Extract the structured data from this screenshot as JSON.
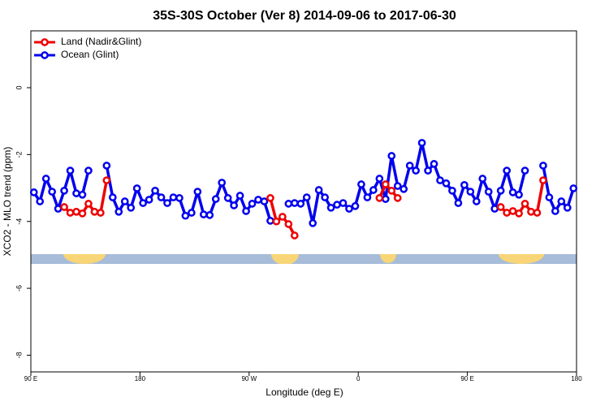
{
  "chart_data": {
    "type": "line",
    "title": "35S-30S October (Ver 8)   2014-09-06 to 2017-06-30",
    "x_label": "Longitude (deg E)",
    "y_label": "XCO2 - MLO trend (ppm)",
    "x": [
      92.5,
      97.5,
      102.5,
      107.5,
      112.5,
      117.5,
      122.5,
      127.5,
      132.5,
      137.5,
      142.5,
      147.5,
      152.5,
      157.5,
      162.5,
      167.5,
      172.5,
      177.5,
      182.5,
      187.5,
      192.5,
      197.5,
      202.5,
      207.5,
      212.5,
      217.5,
      222.5,
      227.5,
      232.5,
      237.5,
      242.5,
      247.5,
      252.5,
      257.5,
      262.5,
      267.5,
      272.5,
      277.5,
      282.5,
      287.5,
      292.5,
      297.5,
      302.5,
      307.5,
      312.5,
      317.5,
      322.5,
      327.5,
      332.5,
      337.5,
      342.5,
      347.5,
      352.5,
      357.5,
      362.5,
      367.5,
      372.5,
      377.5,
      382.5,
      387.5,
      392.5,
      397.5,
      402.5,
      407.5,
      412.5,
      417.5,
      422.5,
      427.5,
      432.5,
      437.5,
      442.5,
      447.5,
      452.5,
      457.5,
      462.5,
      467.5,
      472.5,
      477.5,
      482.5,
      487.5,
      492.5,
      497.5,
      502.5,
      507.5,
      512.5,
      517.5,
      522.5,
      527.5,
      532.5,
      537.5
    ],
    "series": [
      {
        "name": "Land (Nadir&Glint)",
        "color": "#ee0000",
        "values": [
          null,
          null,
          null,
          null,
          null,
          -3.57,
          -3.74,
          -3.71,
          -3.76,
          -3.47,
          -3.71,
          -3.74,
          -2.77,
          null,
          null,
          null,
          null,
          null,
          null,
          null,
          null,
          null,
          null,
          null,
          null,
          null,
          null,
          null,
          null,
          null,
          null,
          null,
          null,
          null,
          null,
          null,
          null,
          null,
          null,
          -3.3,
          -4.0,
          -3.86,
          -4.08,
          -4.42,
          null,
          null,
          null,
          null,
          null,
          null,
          null,
          null,
          null,
          null,
          null,
          null,
          null,
          -3.3,
          -2.89,
          -3.08,
          -3.3,
          null,
          null,
          null,
          null,
          null,
          null,
          null,
          null,
          null,
          null,
          null,
          null,
          null,
          null,
          null,
          null,
          -3.57,
          -3.74,
          -3.69,
          -3.76,
          -3.47,
          -3.71,
          -3.74,
          -2.77,
          null,
          null,
          null,
          null,
          null
        ]
      },
      {
        "name": "Ocean (Glint)",
        "color": "#0000ee",
        "values": [
          -3.13,
          -3.4,
          -2.72,
          -3.11,
          -3.62,
          -3.08,
          -2.48,
          -3.16,
          -3.2,
          -2.48,
          null,
          null,
          -2.33,
          -3.28,
          -3.71,
          -3.4,
          -3.59,
          -3.01,
          -3.45,
          -3.35,
          -3.08,
          -3.28,
          -3.45,
          -3.28,
          -3.3,
          -3.83,
          -3.74,
          -3.11,
          -3.79,
          -3.81,
          -3.33,
          -2.84,
          -3.3,
          -3.52,
          -3.23,
          -3.69,
          -3.47,
          -3.35,
          -3.4,
          -3.98,
          null,
          null,
          -3.47,
          -3.45,
          -3.47,
          -3.28,
          -4.05,
          -3.06,
          -3.28,
          -3.59,
          -3.5,
          -3.45,
          -3.62,
          -3.54,
          -2.89,
          -3.28,
          -3.06,
          -2.72,
          -3.33,
          -2.04,
          -2.94,
          -3.03,
          -2.33,
          -2.48,
          -1.65,
          -2.48,
          -2.28,
          -2.77,
          -2.86,
          -3.08,
          -3.45,
          -2.91,
          -3.11,
          -3.4,
          -2.72,
          -3.11,
          -3.62,
          -3.08,
          -2.48,
          -3.13,
          -3.2,
          -2.48,
          null,
          null,
          -2.33,
          -3.28,
          -3.69,
          -3.4,
          -3.59,
          -3.01
        ]
      }
    ],
    "xlim": [
      90,
      540
    ],
    "xticks": [
      {
        "value": 90,
        "label": "90 E"
      },
      180,
      {
        "value": 270,
        "label": "90 W"
      },
      {
        "value": 360,
        "label": "0"
      },
      {
        "value": 450,
        "label": "90 E"
      },
      {
        "value": 540,
        "label": "180"
      }
    ],
    "ylim": [
      -8.5,
      1.7
    ],
    "yticks": [
      -8,
      -6,
      -4,
      -2,
      0
    ],
    "legend": "top-left"
  }
}
